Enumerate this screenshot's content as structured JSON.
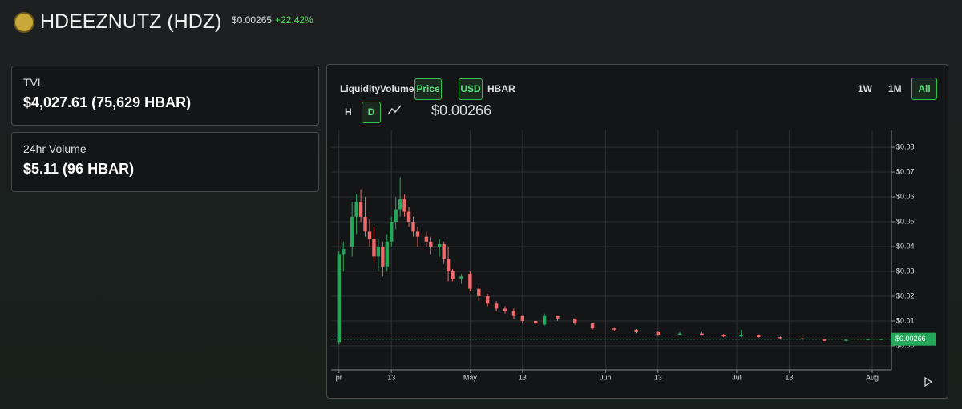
{
  "header": {
    "title": "HDEEZNUTZ (HDZ)",
    "price": "$0.00265",
    "change": "+22.42%"
  },
  "cards": [
    {
      "label": "TVL",
      "value": "$4,027.61 (75,629 HBAR)"
    },
    {
      "label": "24hr Volume",
      "value": "$5.11 (96 HBAR)"
    }
  ],
  "toolbar": {
    "metrics": [
      "Liquidity",
      "Volume",
      "Price"
    ],
    "currencies": [
      "USD",
      "HBAR"
    ],
    "ranges": [
      "1W",
      "1M",
      "All"
    ],
    "intervals": [
      "H",
      "D"
    ]
  },
  "chart_data": {
    "type": "candlestick",
    "up_color": "#26a65b",
    "down_color": "#ef6a6a",
    "grid": true,
    "last_price": 0.00266,
    "last_price_label": "$0.00266",
    "x": [
      0,
      1,
      3,
      4,
      5,
      6,
      7,
      8,
      9,
      10,
      11,
      12,
      13,
      14,
      15,
      16,
      17,
      18,
      20,
      21,
      23,
      24,
      25,
      26,
      28,
      30,
      32,
      34,
      36,
      38,
      40,
      42,
      45,
      47,
      50,
      54,
      58,
      63,
      68,
      73,
      78,
      83,
      88,
      92,
      96,
      101,
      106,
      111,
      116,
      121,
      124
    ],
    "open": [
      0.0015,
      0.037,
      0.04,
      0.052,
      0.058,
      0.052,
      0.046,
      0.043,
      0.036,
      0.04,
      0.032,
      0.042,
      0.05,
      0.055,
      0.059,
      0.054,
      0.05,
      0.046,
      0.044,
      0.042,
      0.04,
      0.041,
      0.035,
      0.03,
      0.027,
      0.029,
      0.023,
      0.02,
      0.017,
      0.015,
      0.014,
      0.012,
      0.01,
      0.0085,
      0.012,
      0.011,
      0.009,
      0.007,
      0.0065,
      0.0055,
      0.0045,
      0.005,
      0.0045,
      0.0038,
      0.0045,
      0.0035,
      0.003,
      0.0027,
      0.002,
      0.0024,
      0.0026
    ],
    "high": [
      0.038,
      0.042,
      0.058,
      0.061,
      0.063,
      0.06,
      0.051,
      0.048,
      0.043,
      0.042,
      0.045,
      0.052,
      0.06,
      0.068,
      0.061,
      0.056,
      0.052,
      0.048,
      0.046,
      0.044,
      0.043,
      0.042,
      0.04,
      0.031,
      0.029,
      0.03,
      0.024,
      0.021,
      0.018,
      0.016,
      0.015,
      0.012,
      0.01,
      0.013,
      0.012,
      0.011,
      0.009,
      0.0072,
      0.0068,
      0.0058,
      0.0055,
      0.0055,
      0.0048,
      0.0065,
      0.0046,
      0.0038,
      0.0032,
      0.0028,
      0.0026,
      0.0028,
      0.0028
    ],
    "low": [
      0.0005,
      0.03,
      0.036,
      0.045,
      0.05,
      0.044,
      0.04,
      0.034,
      0.03,
      0.028,
      0.03,
      0.04,
      0.047,
      0.052,
      0.052,
      0.048,
      0.044,
      0.04,
      0.04,
      0.037,
      0.036,
      0.033,
      0.026,
      0.026,
      0.025,
      0.022,
      0.018,
      0.016,
      0.014,
      0.013,
      0.011,
      0.009,
      0.0085,
      0.008,
      0.01,
      0.0085,
      0.0065,
      0.006,
      0.005,
      0.004,
      0.0042,
      0.0042,
      0.0035,
      0.0035,
      0.0032,
      0.0028,
      0.0025,
      0.0018,
      0.0018,
      0.0022,
      0.0024
    ],
    "close": [
      0.037,
      0.039,
      0.052,
      0.058,
      0.052,
      0.046,
      0.043,
      0.036,
      0.04,
      0.032,
      0.042,
      0.05,
      0.055,
      0.059,
      0.054,
      0.05,
      0.046,
      0.044,
      0.042,
      0.04,
      0.041,
      0.035,
      0.03,
      0.027,
      0.028,
      0.023,
      0.02,
      0.017,
      0.015,
      0.014,
      0.012,
      0.01,
      0.009,
      0.012,
      0.011,
      0.009,
      0.007,
      0.0065,
      0.0055,
      0.0045,
      0.005,
      0.0045,
      0.0038,
      0.0045,
      0.0035,
      0.003,
      0.0027,
      0.002,
      0.0024,
      0.0026,
      0.00266
    ],
    "xlim": [
      -1.8,
      126.4
    ],
    "xticks": [
      {
        "value": 0,
        "label": "pr"
      },
      {
        "value": 12,
        "label": "13"
      },
      {
        "value": 30,
        "label": "May"
      },
      {
        "value": 42,
        "label": "13"
      },
      {
        "value": 61,
        "label": "Jun"
      },
      {
        "value": 73,
        "label": "13"
      },
      {
        "value": 91,
        "label": "Jul"
      },
      {
        "value": 103,
        "label": "13"
      },
      {
        "value": 122,
        "label": "Aug"
      }
    ],
    "ylim": [
      -0.0097,
      0.0868
    ],
    "yticks": [
      {
        "value": 0,
        "label": "$0.00"
      },
      {
        "value": 0.01,
        "label": "$0.01"
      },
      {
        "value": 0.02,
        "label": "$0.02"
      },
      {
        "value": 0.03,
        "label": "$0.03"
      },
      {
        "value": 0.04,
        "label": "$0.04"
      },
      {
        "value": 0.05,
        "label": "$0.05"
      },
      {
        "value": 0.06,
        "label": "$0.06"
      },
      {
        "value": 0.07,
        "label": "$0.07"
      },
      {
        "value": 0.08,
        "label": "$0.08"
      }
    ]
  }
}
